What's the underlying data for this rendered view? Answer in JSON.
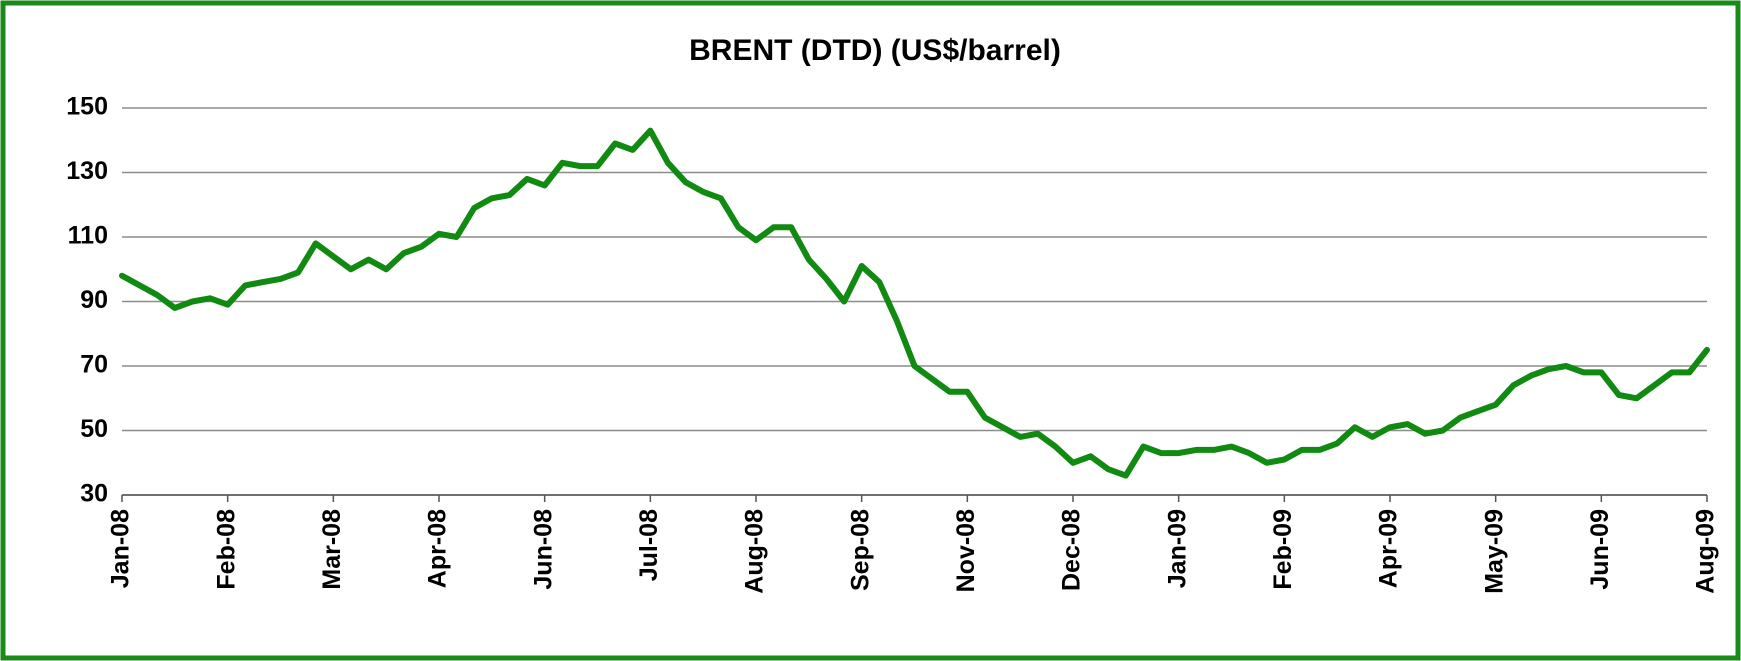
{
  "chart_data": {
    "type": "line",
    "title": "BRENT (DTD) (US$/barrel)",
    "categories": [
      "Jan-08",
      null,
      null,
      null,
      null,
      null,
      "Feb-08",
      null,
      null,
      null,
      null,
      null,
      "Mar-08",
      null,
      null,
      null,
      null,
      null,
      "Apr-08",
      null,
      null,
      null,
      null,
      null,
      "Jun-08",
      null,
      null,
      null,
      null,
      null,
      "Jul-08",
      null,
      null,
      null,
      null,
      null,
      "Aug-08",
      null,
      null,
      null,
      null,
      null,
      "Sep-08",
      null,
      null,
      null,
      null,
      null,
      "Nov-08",
      null,
      null,
      null,
      null,
      null,
      "Dec-08",
      null,
      null,
      null,
      null,
      null,
      "Jan-09",
      null,
      null,
      null,
      null,
      null,
      "Feb-09",
      null,
      null,
      null,
      null,
      null,
      "Apr-09",
      null,
      null,
      null,
      null,
      null,
      "May-09",
      null,
      null,
      null,
      null,
      null,
      "Jun-09",
      null,
      null,
      null,
      null,
      null,
      "Aug-09"
    ],
    "values": [
      98,
      95,
      92,
      88,
      90,
      91,
      89,
      95,
      96,
      97,
      99,
      108,
      104,
      100,
      103,
      100,
      105,
      107,
      111,
      110,
      119,
      122,
      123,
      128,
      126,
      133,
      132,
      132,
      139,
      137,
      143,
      133,
      127,
      124,
      122,
      113,
      109,
      113,
      113,
      103,
      97,
      90,
      101,
      96,
      84,
      70,
      66,
      62,
      62,
      54,
      51,
      48,
      49,
      45,
      40,
      42,
      38,
      36,
      45,
      43,
      43,
      44,
      44,
      45,
      43,
      40,
      41,
      44,
      44,
      46,
      51,
      48,
      51,
      52,
      49,
      50,
      54,
      56,
      58,
      64,
      67,
      69,
      70,
      68,
      68,
      61,
      60,
      64,
      68,
      68,
      75
    ],
    "color": "#118a11",
    "ylim": [
      30,
      150
    ],
    "yticks": [
      30,
      50,
      70,
      90,
      110,
      130,
      150
    ],
    "grid": true
  }
}
